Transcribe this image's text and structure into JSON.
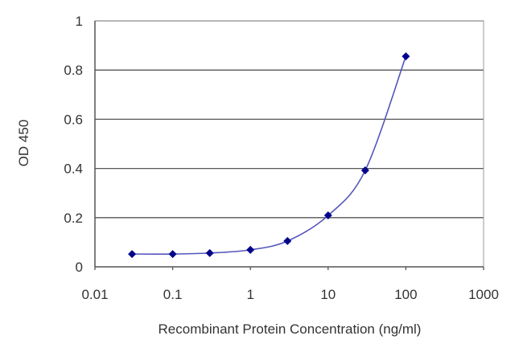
{
  "chart_data": {
    "type": "line",
    "title": "",
    "xlabel": "Recombinant Protein Concentration (ng/ml)",
    "ylabel": "OD 450",
    "xscale": "log",
    "xlim": [
      0.01,
      1000
    ],
    "ylim": [
      0,
      1
    ],
    "x_ticks": [
      "0.01",
      "0.1",
      "1",
      "10",
      "100",
      "1000"
    ],
    "y_ticks": [
      "0",
      "0.2",
      "0.4",
      "0.6",
      "0.8",
      "1"
    ],
    "grid": {
      "y_major": true,
      "x_major": false
    },
    "legend": null,
    "series": [
      {
        "name": "OD 450",
        "color": "#00008B",
        "line_color": "#5555BB",
        "marker": "diamond",
        "x": [
          0.03,
          0.1,
          0.3,
          1,
          3,
          10,
          30,
          100
        ],
        "values": [
          0.052,
          0.052,
          0.056,
          0.069,
          0.105,
          0.209,
          0.392,
          0.856
        ]
      }
    ]
  }
}
